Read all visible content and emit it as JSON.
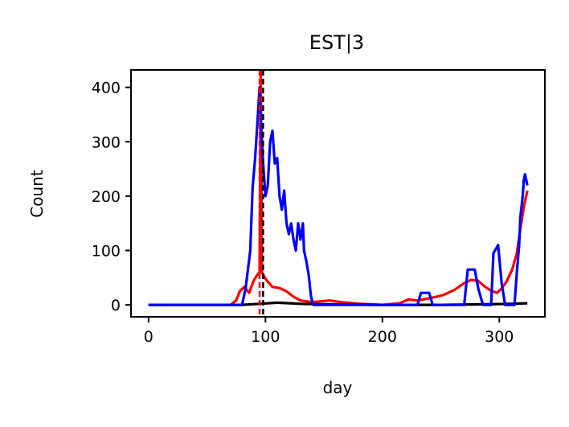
{
  "chart_data": {
    "type": "line",
    "title": "EST|3",
    "xlabel": "day",
    "ylabel": "Count",
    "xlim": [
      -15,
      339
    ],
    "ylim": [
      -22,
      432
    ],
    "xticks": [
      0,
      100,
      200,
      300
    ],
    "yticks": [
      0,
      100,
      200,
      300,
      400
    ],
    "grid": false,
    "legend": "none",
    "vlines": [
      {
        "x": 95,
        "color": "#ff0000",
        "style": "dashed"
      },
      {
        "x": 98,
        "color": "#000000",
        "style": "dashed"
      }
    ],
    "series": [
      {
        "color": "#ff0000",
        "points": [
          [
            0,
            0
          ],
          [
            70,
            0
          ],
          [
            75,
            8
          ],
          [
            78,
            25
          ],
          [
            82,
            33
          ],
          [
            86,
            22
          ],
          [
            90,
            45
          ],
          [
            93,
            55
          ],
          [
            95,
            60
          ],
          [
            96,
            430
          ],
          [
            97,
            60
          ],
          [
            100,
            48
          ],
          [
            103,
            40
          ],
          [
            106,
            33
          ],
          [
            112,
            31
          ],
          [
            118,
            25
          ],
          [
            124,
            15
          ],
          [
            130,
            8
          ],
          [
            140,
            5
          ],
          [
            155,
            8
          ],
          [
            165,
            5
          ],
          [
            180,
            2
          ],
          [
            200,
            0
          ],
          [
            215,
            3
          ],
          [
            222,
            10
          ],
          [
            230,
            8
          ],
          [
            240,
            12
          ],
          [
            252,
            18
          ],
          [
            262,
            28
          ],
          [
            270,
            40
          ],
          [
            276,
            46
          ],
          [
            282,
            44
          ],
          [
            288,
            33
          ],
          [
            293,
            26
          ],
          [
            298,
            22
          ],
          [
            302,
            30
          ],
          [
            306,
            42
          ],
          [
            311,
            65
          ],
          [
            315,
            95
          ],
          [
            318,
            140
          ],
          [
            321,
            180
          ],
          [
            324,
            210
          ]
        ]
      },
      {
        "color": "#000000",
        "points": [
          [
            0,
            0
          ],
          [
            80,
            0
          ],
          [
            95,
            2
          ],
          [
            110,
            4
          ],
          [
            130,
            2
          ],
          [
            150,
            1
          ],
          [
            200,
            0
          ],
          [
            250,
            0
          ],
          [
            290,
            1
          ],
          [
            310,
            2
          ],
          [
            324,
            3
          ]
        ]
      },
      {
        "color": "#0000ff",
        "points": [
          [
            0,
            0
          ],
          [
            80,
            0
          ],
          [
            83,
            30
          ],
          [
            85,
            65
          ],
          [
            87,
            100
          ],
          [
            89,
            215
          ],
          [
            91,
            265
          ],
          [
            93,
            330
          ],
          [
            95,
            400
          ],
          [
            96,
            340
          ],
          [
            98,
            260
          ],
          [
            100,
            200
          ],
          [
            102,
            220
          ],
          [
            104,
            300
          ],
          [
            106,
            320
          ],
          [
            108,
            260
          ],
          [
            110,
            270
          ],
          [
            112,
            200
          ],
          [
            114,
            175
          ],
          [
            116,
            210
          ],
          [
            118,
            150
          ],
          [
            120,
            130
          ],
          [
            122,
            150
          ],
          [
            124,
            120
          ],
          [
            126,
            100
          ],
          [
            128,
            150
          ],
          [
            130,
            120
          ],
          [
            132,
            150
          ],
          [
            133,
            100
          ],
          [
            135,
            80
          ],
          [
            137,
            55
          ],
          [
            139,
            15
          ],
          [
            141,
            0
          ],
          [
            230,
            0
          ],
          [
            233,
            22
          ],
          [
            240,
            22
          ],
          [
            243,
            0
          ],
          [
            270,
            0
          ],
          [
            273,
            65
          ],
          [
            279,
            65
          ],
          [
            282,
            30
          ],
          [
            286,
            0
          ],
          [
            293,
            0
          ],
          [
            295,
            95
          ],
          [
            299,
            110
          ],
          [
            302,
            40
          ],
          [
            305,
            0
          ],
          [
            313,
            0
          ],
          [
            315,
            60
          ],
          [
            317,
            110
          ],
          [
            318,
            160
          ],
          [
            320,
            200
          ],
          [
            321,
            230
          ],
          [
            322,
            240
          ],
          [
            324,
            220
          ]
        ]
      }
    ]
  }
}
